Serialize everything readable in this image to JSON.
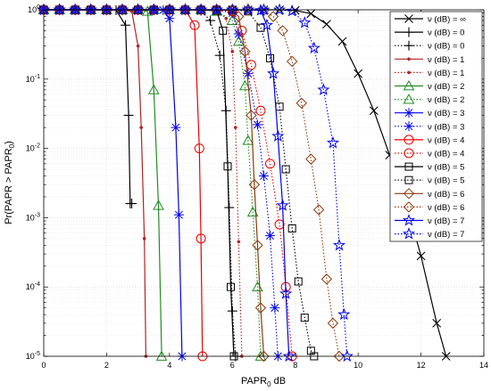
{
  "chart_data": {
    "type": "line",
    "title": "",
    "xlabel": "PAPR",
    "xlabel_sub": "0",
    "xlabel_unit": " dB",
    "ylabel": "Pr(PAPR > PAPR",
    "ylabel_sub": "0",
    "ylabel_end": ")",
    "xlim": [
      0,
      14
    ],
    "ylim": [
      1e-05,
      1
    ],
    "yscale": "log",
    "grid": true,
    "legend_position": "top-right",
    "x_ticks": [
      "0",
      "2",
      "4",
      "6",
      "8",
      "10",
      "12",
      "14"
    ],
    "y_ticks": [
      {
        "base": "10",
        "exp": "0"
      },
      {
        "base": "10",
        "exp": "-1"
      },
      {
        "base": "10",
        "exp": "-2"
      },
      {
        "base": "10",
        "exp": "-3"
      },
      {
        "base": "10",
        "exp": "-4"
      },
      {
        "base": "10",
        "exp": "-5"
      }
    ],
    "series": [
      {
        "name": "ν (dB) = ∞",
        "color": "#000000",
        "dash": "solid",
        "marker": "x",
        "x": [
          0,
          0.5,
          1,
          1.5,
          2,
          2.5,
          3,
          3.5,
          4,
          4.5,
          5,
          5.5,
          6,
          6.5,
          7,
          7.5,
          8,
          8.5,
          9,
          9.5,
          10,
          10.5,
          11,
          11.5,
          12,
          12.5,
          12.8
        ],
        "y": [
          1,
          1,
          1,
          1,
          1,
          1,
          1,
          1,
          1,
          1,
          1,
          1,
          1,
          1,
          1,
          1,
          0.98,
          0.88,
          0.62,
          0.35,
          0.12,
          0.035,
          0.008,
          0.0018,
          0.00028,
          3e-05,
          1e-05
        ]
      },
      {
        "name": "ν (dB) = 0",
        "color": "#000000",
        "dash": "solid",
        "marker": "plus",
        "x": [
          0,
          0.5,
          1,
          1.5,
          2,
          2.3,
          2.6,
          2.7,
          2.75,
          2.8
        ],
        "y": [
          1,
          1,
          1,
          1,
          1,
          0.99,
          0.6,
          0.03,
          0.0016,
          0.0016
        ]
      },
      {
        "name": "ν (dB) = 0",
        "color": "#000000",
        "dash": "dotted",
        "marker": "plus",
        "x": [
          0,
          0.5,
          1,
          1.5,
          2,
          2.5,
          3,
          3.5,
          4,
          4.5,
          5,
          5.3,
          5.6,
          5.8,
          5.9,
          6.0,
          6.1
        ],
        "y": [
          1,
          1,
          1,
          1,
          1,
          1,
          1,
          1,
          1,
          1,
          0.97,
          0.7,
          0.22,
          0.035,
          0.0014,
          4.5e-05,
          1e-05
        ]
      },
      {
        "name": "ν (dB) = 1",
        "color": "#b22222",
        "dash": "solid",
        "marker": "dot",
        "x": [
          0,
          0.5,
          1,
          1.5,
          2,
          2.5,
          2.8,
          3.0,
          3.1,
          3.2,
          3.25
        ],
        "y": [
          1,
          1,
          1,
          1,
          1,
          1,
          0.95,
          0.3,
          0.02,
          0.0005,
          1e-05
        ]
      },
      {
        "name": "ν (dB) = 1",
        "color": "#b22222",
        "dash": "dotted",
        "marker": "dot",
        "x": [
          0,
          0.5,
          1,
          1.5,
          2,
          2.5,
          3,
          3.5,
          4,
          4.5,
          5,
          5.5,
          5.8,
          6.0,
          6.1,
          6.2,
          6.3
        ],
        "y": [
          1,
          1,
          1,
          1,
          1,
          1,
          1,
          1,
          1,
          1,
          1,
          0.98,
          0.75,
          0.25,
          0.02,
          0.00045,
          1e-05
        ]
      },
      {
        "name": "ν (dB) = 2",
        "color": "#228b22",
        "dash": "solid",
        "marker": "triangle",
        "x": [
          0,
          0.5,
          1,
          1.5,
          2,
          2.5,
          3,
          3.3,
          3.5,
          3.65,
          3.75
        ],
        "y": [
          1,
          1,
          1,
          1,
          1,
          1,
          1,
          0.95,
          0.07,
          0.0015,
          1e-05
        ]
      },
      {
        "name": "ν (dB) = 2",
        "color": "#228b22",
        "dash": "dotted",
        "marker": "triangle",
        "x": [
          0,
          0.5,
          1,
          1.5,
          2,
          2.5,
          3,
          3.5,
          4,
          4.5,
          5,
          5.5,
          6,
          6.2,
          6.4,
          6.5,
          6.65,
          6.8,
          6.9
        ],
        "y": [
          1,
          1,
          1,
          1,
          1,
          1,
          1,
          1,
          1,
          1,
          1,
          0.95,
          0.7,
          0.35,
          0.08,
          0.013,
          0.0012,
          0.0001,
          1e-05
        ]
      },
      {
        "name": "ν (dB) = 3",
        "color": "#0000ee",
        "dash": "solid",
        "marker": "asterisk",
        "x": [
          0,
          0.5,
          1,
          1.5,
          2,
          2.5,
          3,
          3.5,
          3.8,
          4.0,
          4.2,
          4.3,
          4.4
        ],
        "y": [
          1,
          1,
          1,
          1,
          1,
          1,
          1,
          1,
          0.99,
          0.75,
          0.02,
          0.0011,
          1e-05
        ]
      },
      {
        "name": "ν (dB) = 3",
        "color": "#0000ee",
        "dash": "dotted",
        "marker": "asterisk",
        "x": [
          0,
          0.5,
          1,
          1.5,
          2,
          2.5,
          3,
          3.5,
          4,
          4.5,
          5,
          5.5,
          6,
          6.2,
          6.5,
          6.8,
          7.0,
          7.2,
          7.35,
          7.45
        ],
        "y": [
          1,
          1,
          1,
          1,
          1,
          1,
          1,
          1,
          1,
          1,
          1,
          1,
          0.9,
          0.45,
          0.12,
          0.022,
          0.004,
          0.00055,
          5e-05,
          1e-05
        ]
      },
      {
        "name": "ν (dB) = 4",
        "color": "#ee0000",
        "dash": "solid",
        "marker": "circle",
        "x": [
          0,
          0.5,
          1,
          1.5,
          2,
          2.5,
          3,
          3.5,
          4,
          4.5,
          4.8,
          4.95,
          5.0,
          5.05
        ],
        "y": [
          1,
          1,
          1,
          1,
          1,
          1,
          1,
          1,
          1,
          1,
          0.6,
          0.01,
          0.0005,
          1e-05
        ]
      },
      {
        "name": "ν (dB) = 4",
        "color": "#ee0000",
        "dash": "dotted",
        "marker": "circle",
        "x": [
          0,
          0.5,
          1,
          1.5,
          2,
          2.5,
          3,
          3.5,
          4,
          4.5,
          5,
          5.5,
          6,
          6.3,
          6.6,
          6.9,
          7.2,
          7.5,
          7.7,
          7.9
        ],
        "y": [
          1,
          1,
          1,
          1,
          1,
          1,
          1,
          1,
          1,
          1,
          1,
          1,
          0.95,
          0.5,
          0.16,
          0.035,
          0.006,
          0.0008,
          0.0001,
          1e-05
        ]
      },
      {
        "name": "ν (dB) = 5",
        "color": "#000000",
        "dash": "solid",
        "marker": "square",
        "x": [
          0,
          0.5,
          1,
          1.5,
          2,
          2.5,
          3,
          3.5,
          4,
          4.5,
          5,
          5.5,
          5.7,
          5.85,
          5.95,
          6.05
        ],
        "y": [
          1,
          1,
          1,
          1,
          1,
          1,
          1,
          1,
          1,
          1,
          1,
          0.97,
          0.5,
          0.0055,
          0.0001,
          1e-05
        ]
      },
      {
        "name": "ν (dB) = 5",
        "color": "#000000",
        "dash": "dotted",
        "marker": "square",
        "x": [
          0,
          0.5,
          1,
          1.5,
          2,
          2.5,
          3,
          3.5,
          4,
          4.5,
          5,
          5.5,
          6,
          6.5,
          6.9,
          7.2,
          7.5,
          7.7,
          7.9,
          8.1,
          8.3,
          8.5,
          8.6
        ],
        "y": [
          1,
          1,
          1,
          1,
          1,
          1,
          1,
          1,
          1,
          1,
          1,
          1,
          1,
          0.95,
          0.55,
          0.2,
          0.04,
          0.005,
          0.0007,
          0.00012,
          3.6e-05,
          1.2e-05,
          1e-05
        ]
      },
      {
        "name": "ν (dB) = 6",
        "color": "#8b3a0f",
        "dash": "solid",
        "marker": "diamond",
        "x": [
          0,
          0.5,
          1,
          1.5,
          2,
          2.5,
          3,
          3.5,
          4,
          4.5,
          5,
          5.5,
          6,
          6.2,
          6.4,
          6.6,
          6.7,
          6.8,
          6.9,
          7.0
        ],
        "y": [
          1,
          1,
          1,
          1,
          1,
          1,
          1,
          1,
          1,
          1,
          1,
          1,
          0.98,
          0.8,
          0.25,
          0.03,
          0.003,
          0.0004,
          5e-05,
          1e-05
        ]
      },
      {
        "name": "ν (dB) = 6",
        "color": "#8b3a0f",
        "dash": "dotted",
        "marker": "diamond",
        "x": [
          0,
          0.5,
          1,
          1.5,
          2,
          2.5,
          3,
          3.5,
          4,
          4.5,
          5,
          5.5,
          6,
          6.5,
          7,
          7.3,
          7.6,
          7.9,
          8.2,
          8.5,
          8.75,
          9.0,
          9.2,
          9.4
        ],
        "y": [
          1,
          1,
          1,
          1,
          1,
          1,
          1,
          1,
          1,
          1,
          1,
          1,
          1,
          1,
          0.98,
          0.8,
          0.5,
          0.18,
          0.045,
          0.007,
          0.0013,
          0.00013,
          3e-05,
          1e-05
        ]
      },
      {
        "name": "ν (dB) = 7",
        "color": "#0000ee",
        "dash": "solid",
        "marker": "star",
        "x": [
          0,
          0.5,
          1,
          1.5,
          2,
          2.5,
          3,
          3.5,
          4,
          4.5,
          5,
          5.5,
          6,
          6.5,
          6.9,
          7.1,
          7.3,
          7.45,
          7.6,
          7.7,
          7.8
        ],
        "y": [
          1,
          1,
          1,
          1,
          1,
          1,
          1,
          1,
          1,
          1,
          1,
          1,
          1,
          1,
          0.98,
          0.6,
          0.12,
          0.015,
          0.0015,
          8e-05,
          1e-05
        ]
      },
      {
        "name": "ν (dB) = 7",
        "color": "#0000ee",
        "dash": "dotted",
        "marker": "star",
        "x": [
          0,
          0.5,
          1,
          1.5,
          2,
          2.5,
          3,
          3.5,
          4,
          4.5,
          5,
          5.5,
          6,
          6.5,
          7,
          7.5,
          7.9,
          8.3,
          8.6,
          8.9,
          9.2,
          9.4,
          9.55,
          9.65
        ],
        "y": [
          1,
          1,
          1,
          1,
          1,
          1,
          1,
          1,
          1,
          1,
          1,
          1,
          1,
          1,
          1,
          1,
          0.96,
          0.65,
          0.28,
          0.07,
          0.012,
          0.0004,
          4e-05,
          1e-05
        ]
      }
    ]
  }
}
